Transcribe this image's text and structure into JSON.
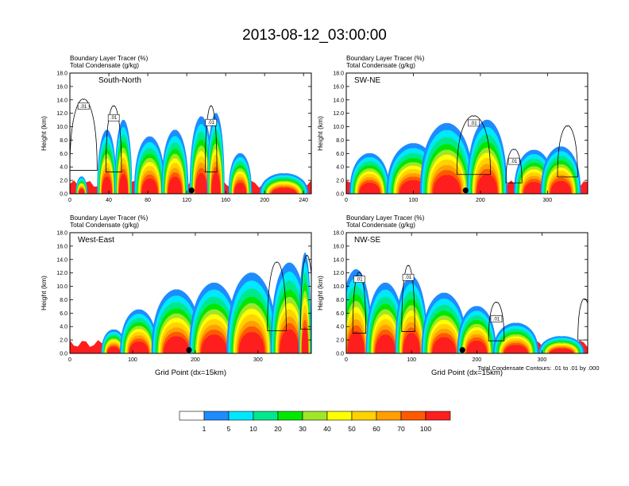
{
  "figure": {
    "main_title": "2013-08-12_03:00:00",
    "footnote": "Total Condensate Contours: .01 to .01 by .000",
    "xlabel": "Grid Point (dx=15km)",
    "ylabel": "Height (km)"
  },
  "colorbar": {
    "labels": [
      "1",
      "5",
      "10",
      "20",
      "30",
      "40",
      "50",
      "60",
      "70",
      "100"
    ],
    "colors": [
      "#ffffff",
      "#1e8cff",
      "#00e8ff",
      "#00e88c",
      "#00e800",
      "#a0e628",
      "#ffff00",
      "#ffd200",
      "#ffa000",
      "#ff5a00",
      "#ff1e1e"
    ]
  },
  "chart_data": [
    {
      "type": "heatmap",
      "panel": "top-left",
      "label": "South-North",
      "title_lines": [
        "Boundary Layer Tracer   (%)",
        "Total Condensate   (g/kg)"
      ],
      "xlim": [
        0,
        248
      ],
      "ylim": [
        0,
        18
      ],
      "x_ticks": [
        "0",
        "40",
        "80",
        "120",
        "160",
        "200",
        "240"
      ],
      "y_ticks": [
        "0.0",
        "2.0",
        "4.0",
        "6.0",
        "8.0",
        "10.0",
        "12.0",
        "14.0",
        "16.0",
        "18.0"
      ],
      "contour_labels": [
        ".01",
        ".01",
        ".01"
      ],
      "marker_x": 125,
      "features": [
        {
          "x": 12,
          "top": 2.5,
          "w": 6
        },
        {
          "x": 38,
          "top": 9.5,
          "w": 10
        },
        {
          "x": 55,
          "top": 11.0,
          "w": 9
        },
        {
          "x": 82,
          "top": 8.5,
          "w": 16
        },
        {
          "x": 108,
          "top": 9.5,
          "w": 14
        },
        {
          "x": 135,
          "top": 11.5,
          "w": 12
        },
        {
          "x": 150,
          "top": 12.0,
          "w": 9
        },
        {
          "x": 175,
          "top": 6.0,
          "w": 12
        },
        {
          "x": 220,
          "top": 3.0,
          "w": 25
        }
      ],
      "outlines": [
        {
          "x": 14,
          "top": 14.0,
          "w": 14
        },
        {
          "x": 45,
          "top": 13.0,
          "w": 8
        },
        {
          "x": 145,
          "top": 13.0,
          "w": 6
        }
      ]
    },
    {
      "type": "heatmap",
      "panel": "top-right",
      "label": "SW-NE",
      "title_lines": [
        "Boundary Layer Tracer   (%)",
        "Total Condensate   (g/kg)"
      ],
      "xlim": [
        0,
        360
      ],
      "ylim": [
        0,
        18
      ],
      "x_ticks": [
        "0",
        "100",
        "200",
        "300"
      ],
      "y_ticks": [
        "0.0",
        "2.0",
        "4.0",
        "6.0",
        "8.0",
        "10.0",
        "12.0",
        "14.0",
        "16.0",
        "18.0"
      ],
      "contour_labels": [
        ".01",
        ".01"
      ],
      "marker_x": 178,
      "features": [
        {
          "x": 35,
          "top": 6.0,
          "w": 30
        },
        {
          "x": 100,
          "top": 7.5,
          "w": 40
        },
        {
          "x": 150,
          "top": 10.5,
          "w": 40
        },
        {
          "x": 210,
          "top": 11.0,
          "w": 30
        },
        {
          "x": 280,
          "top": 6.5,
          "w": 30
        },
        {
          "x": 320,
          "top": 7.0,
          "w": 30
        }
      ],
      "outlines": [
        {
          "x": 190,
          "top": 11.5,
          "w": 25
        },
        {
          "x": 250,
          "top": 6.5,
          "w": 12
        },
        {
          "x": 330,
          "top": 10.0,
          "w": 15
        }
      ]
    },
    {
      "type": "heatmap",
      "panel": "bottom-left",
      "label": "West-East",
      "title_lines": [
        "Boundary Layer Tracer   (%)",
        "Total Condensate   (g/kg)"
      ],
      "xlim": [
        0,
        385
      ],
      "ylim": [
        0,
        18
      ],
      "x_ticks": [
        "0",
        "100",
        "200",
        "300"
      ],
      "y_ticks": [
        "0.0",
        "2.0",
        "4.0",
        "6.0",
        "8.0",
        "10.0",
        "12.0",
        "14.0",
        "16.0",
        "18.0"
      ],
      "contour_labels": [],
      "marker_x": 190,
      "features": [
        {
          "x": 70,
          "top": 3.5,
          "w": 20
        },
        {
          "x": 110,
          "top": 6.5,
          "w": 30
        },
        {
          "x": 170,
          "top": 9.5,
          "w": 40
        },
        {
          "x": 230,
          "top": 10.5,
          "w": 40
        },
        {
          "x": 290,
          "top": 12.0,
          "w": 40
        },
        {
          "x": 350,
          "top": 13.5,
          "w": 30
        },
        {
          "x": 375,
          "top": 15.0,
          "w": 10
        }
      ],
      "outlines": [
        {
          "x": 330,
          "top": 13.5,
          "w": 15
        },
        {
          "x": 378,
          "top": 14.5,
          "w": 10
        }
      ]
    },
    {
      "type": "heatmap",
      "panel": "bottom-right",
      "label": "NW-SE",
      "title_lines": [
        "Boundary Layer Tracer   (%)",
        "Total Condensate   (g/kg)"
      ],
      "xlim": [
        0,
        370
      ],
      "ylim": [
        0,
        18
      ],
      "x_ticks": [
        "0",
        "100",
        "200",
        "300"
      ],
      "y_ticks": [
        "0.0",
        "2.0",
        "4.0",
        "6.0",
        "8.0",
        "10.0",
        "12.0",
        "14.0",
        "16.0",
        "18.0"
      ],
      "contour_labels": [
        ".01",
        ".01",
        ".01"
      ],
      "marker_x": 178,
      "features": [
        {
          "x": 15,
          "top": 12.5,
          "w": 25
        },
        {
          "x": 60,
          "top": 10.5,
          "w": 30
        },
        {
          "x": 100,
          "top": 11.5,
          "w": 25
        },
        {
          "x": 150,
          "top": 9.0,
          "w": 35
        },
        {
          "x": 200,
          "top": 7.0,
          "w": 30
        },
        {
          "x": 260,
          "top": 4.5,
          "w": 35
        },
        {
          "x": 330,
          "top": 2.5,
          "w": 35
        }
      ],
      "outlines": [
        {
          "x": 20,
          "top": 12.0,
          "w": 10
        },
        {
          "x": 95,
          "top": 13.0,
          "w": 10
        },
        {
          "x": 230,
          "top": 7.5,
          "w": 12
        },
        {
          "x": 365,
          "top": 8.0,
          "w": 10
        }
      ]
    }
  ]
}
